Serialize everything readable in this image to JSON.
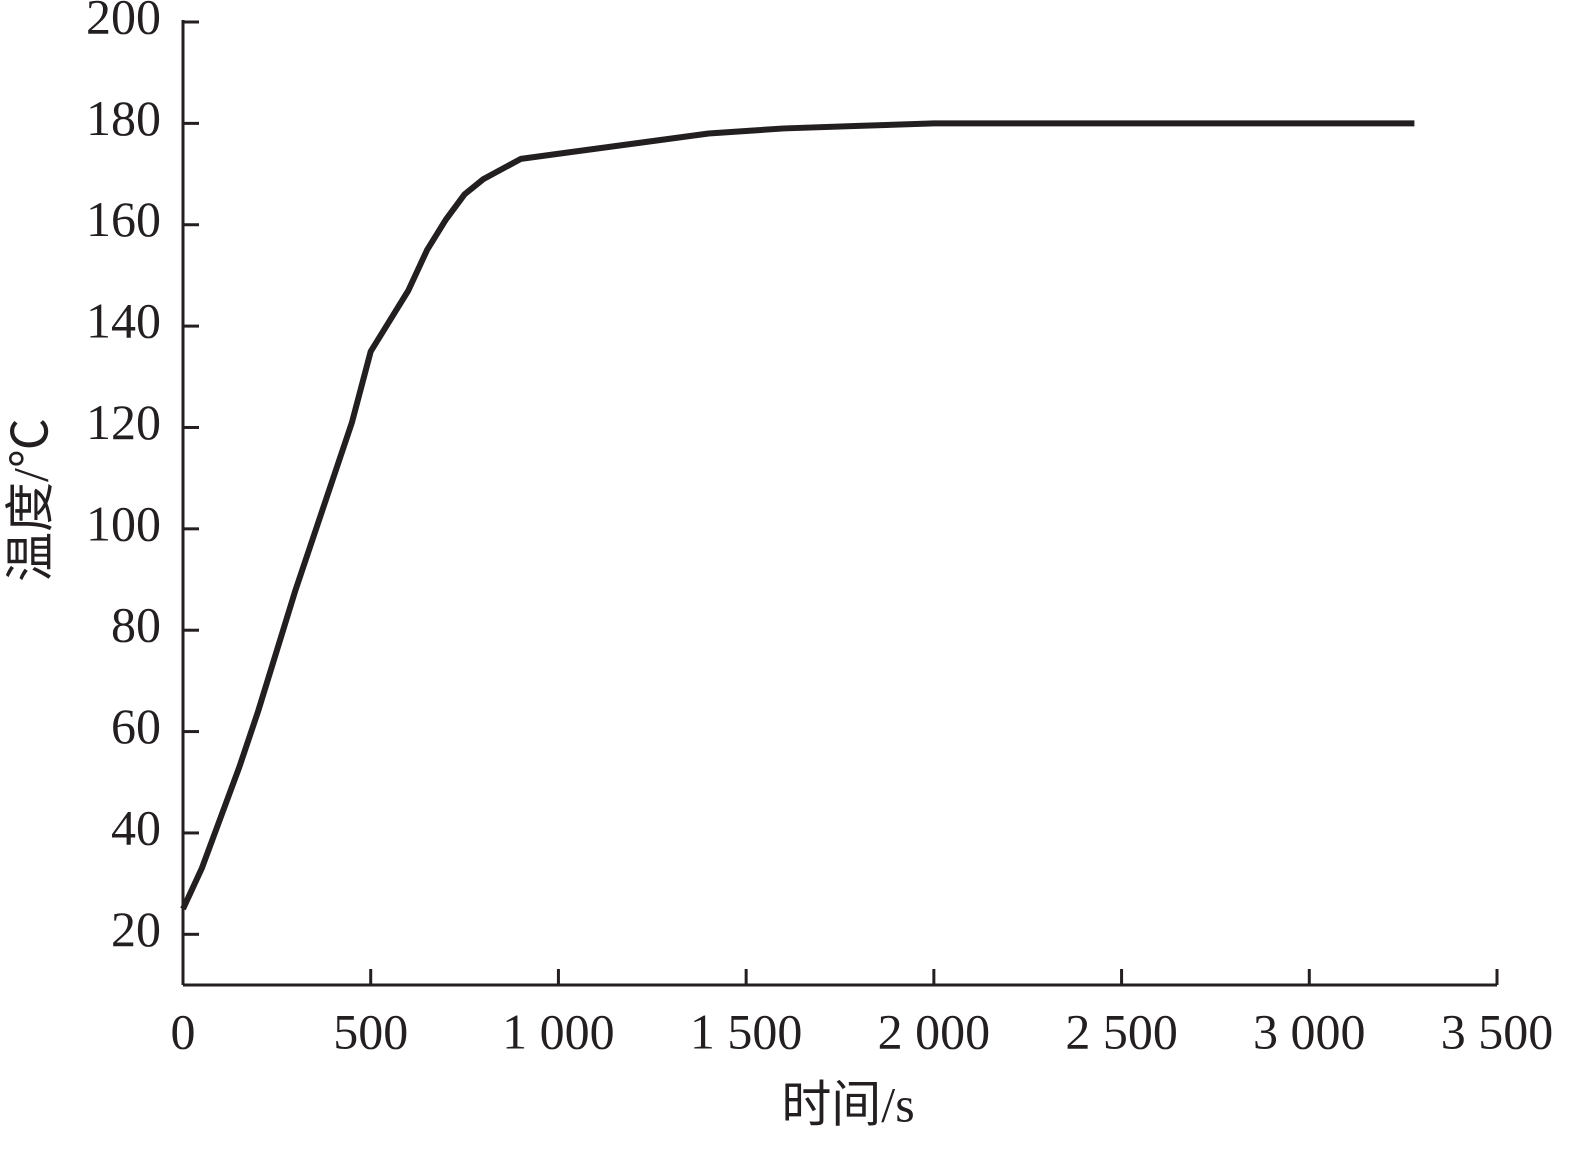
{
  "chart_data": {
    "type": "line",
    "xlabel": "时间/s",
    "ylabel": "温度/℃",
    "x": [
      0,
      50,
      100,
      150,
      200,
      250,
      300,
      350,
      400,
      450,
      500,
      550,
      600,
      650,
      700,
      750,
      800,
      900,
      1000,
      1200,
      1400,
      1600,
      1800,
      2000,
      2500,
      3000,
      3280
    ],
    "series": [
      {
        "color": "#231f20",
        "values": [
          25,
          33,
          43,
          53,
          64,
          76,
          88,
          99,
          110,
          121,
          135,
          141,
          147,
          155,
          161,
          166,
          169,
          173,
          174,
          176,
          178,
          179,
          179.5,
          180,
          180,
          180,
          180
        ]
      }
    ],
    "xlim": [
      0,
      3500
    ],
    "xticks": [
      0,
      500,
      {
        "value": 1000,
        "label": "1 000"
      },
      {
        "value": 1500,
        "label": "1 500"
      },
      {
        "value": 2000,
        "label": "2 000"
      },
      {
        "value": 2500,
        "label": "2 500"
      },
      {
        "value": 3000,
        "label": "3 000"
      },
      {
        "value": 3500,
        "label": "3 500"
      }
    ],
    "ylim": [
      10,
      200
    ],
    "yticks": [
      20,
      40,
      60,
      80,
      100,
      120,
      140,
      160,
      180,
      200
    ],
    "grid": false
  }
}
